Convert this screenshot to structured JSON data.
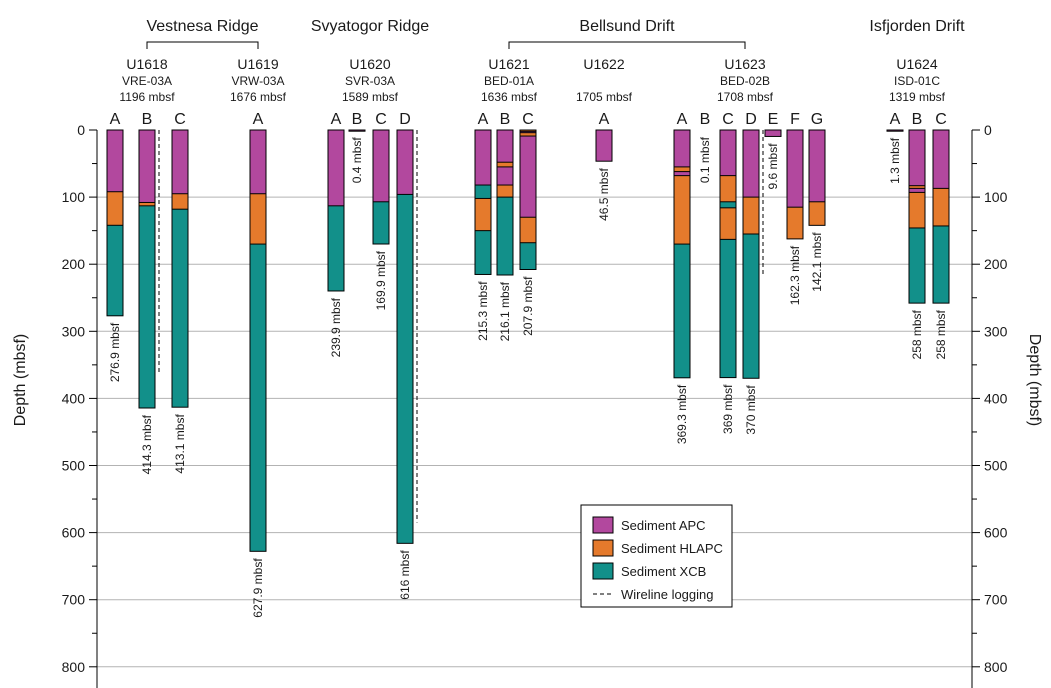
{
  "chart_data": {
    "type": "bar",
    "ylabel": "Depth (mbsf)",
    "ylabel_right": "Depth (mbsf)",
    "ylim": [
      0,
      840
    ],
    "y_ticks": [
      0,
      100,
      200,
      300,
      400,
      500,
      600,
      700,
      800
    ],
    "grid": "horizontal",
    "colors": {
      "APC": "#b2489e",
      "HLAPC": "#e57a2c",
      "XCB": "#12908a",
      "grid": "#b3b3b3"
    },
    "legend": {
      "position": "bottom-right",
      "items": [
        {
          "key": "APC",
          "label": "Sediment APC"
        },
        {
          "key": "HLAPC",
          "label": "Sediment HLAPC"
        },
        {
          "key": "XCB",
          "label": "Sediment XCB"
        },
        {
          "key": "logging",
          "label": "Wireline logging"
        }
      ]
    },
    "regions": [
      {
        "name": "Vestnesa Ridge",
        "sites": [
          "U1618",
          "U1619"
        ],
        "bracket": true
      },
      {
        "name": "Svyatogor Ridge",
        "sites": [
          "U1620"
        ],
        "bracket": false
      },
      {
        "name": "Bellsund Drift",
        "sites": [
          "U1621",
          "U1623"
        ],
        "bracket": true
      },
      {
        "name": "Isfjorden Drift",
        "sites": [
          "U1624"
        ],
        "bracket": false
      }
    ],
    "sites": [
      {
        "name": "U1618",
        "code": "VRE-03A",
        "depth": "1196 mbsf"
      },
      {
        "name": "U1619",
        "code": "VRW-03A",
        "depth": "1676 mbsf"
      },
      {
        "name": "U1620",
        "code": "SVR-03A",
        "depth": "1589 mbsf"
      },
      {
        "name": "U1621",
        "code": "BED-01A",
        "depth": "1636 mbsf"
      },
      {
        "name": "U1622",
        "code": "",
        "depth": "1705 mbsf"
      },
      {
        "name": "U1623",
        "code": "BED-02B",
        "depth": "1708 mbsf"
      },
      {
        "name": "U1624",
        "code": "ISD-01C",
        "depth": "1319 mbsf"
      }
    ],
    "holes": [
      {
        "site": "U1618",
        "hole": "A",
        "total": 276.9,
        "label": "276.9 mbsf",
        "segments": [
          [
            "APC",
            0,
            92
          ],
          [
            "HLAPC",
            92,
            142
          ],
          [
            "XCB",
            142,
            276.9
          ]
        ]
      },
      {
        "site": "U1618",
        "hole": "B",
        "total": 414.3,
        "label": "414.3 mbsf",
        "segments": [
          [
            "APC",
            0,
            108
          ],
          [
            "HLAPC",
            108,
            113
          ],
          [
            "XCB",
            113,
            414.3
          ]
        ],
        "logging": [
          0,
          365
        ]
      },
      {
        "site": "U1618",
        "hole": "C",
        "total": 413.1,
        "label": "413.1 mbsf",
        "segments": [
          [
            "APC",
            0,
            95
          ],
          [
            "HLAPC",
            95,
            118
          ],
          [
            "XCB",
            118,
            413.1
          ]
        ]
      },
      {
        "site": "U1619",
        "hole": "A",
        "total": 627.9,
        "label": "627.9 mbsf",
        "segments": [
          [
            "APC",
            0,
            95
          ],
          [
            "HLAPC",
            95,
            170
          ],
          [
            "XCB",
            170,
            627.9
          ]
        ]
      },
      {
        "site": "U1620",
        "hole": "A",
        "total": 239.9,
        "label": "239.9 mbsf",
        "segments": [
          [
            "APC",
            0,
            113
          ],
          [
            "XCB",
            113,
            239.9
          ]
        ]
      },
      {
        "site": "U1620",
        "hole": "B",
        "total": 0.4,
        "label": "0.4 mbsf",
        "segments": [
          [
            "APC",
            0,
            0.4
          ]
        ]
      },
      {
        "site": "U1620",
        "hole": "C",
        "total": 169.9,
        "label": "169.9 mbsf",
        "segments": [
          [
            "APC",
            0,
            107
          ],
          [
            "XCB",
            107,
            169.9
          ]
        ]
      },
      {
        "site": "U1620",
        "hole": "D",
        "total": 616,
        "label": "616 mbsf",
        "segments": [
          [
            "APC",
            0,
            96
          ],
          [
            "XCB",
            96,
            616
          ]
        ],
        "logging": [
          0,
          585
        ]
      },
      {
        "site": "U1621",
        "hole": "A",
        "total": 215.3,
        "label": "215.3 mbsf",
        "segments": [
          [
            "APC",
            0,
            82
          ],
          [
            "XCB",
            82,
            102
          ],
          [
            "HLAPC",
            102,
            150
          ],
          [
            "XCB",
            150,
            215.3
          ]
        ]
      },
      {
        "site": "U1621",
        "hole": "B",
        "total": 216.1,
        "label": "216.1 mbsf",
        "segments": [
          [
            "APC",
            0,
            48
          ],
          [
            "HLAPC",
            48,
            55
          ],
          [
            "APC",
            55,
            82
          ],
          [
            "HLAPC",
            82,
            100
          ],
          [
            "XCB",
            100,
            216.1
          ]
        ]
      },
      {
        "site": "U1621",
        "hole": "C",
        "total": 207.9,
        "label": "207.9 mbsf",
        "segments": [
          [
            "HLAPC",
            0,
            2
          ],
          [
            "APC",
            2,
            4
          ],
          [
            "HLAPC",
            4,
            9
          ],
          [
            "APC",
            9,
            130
          ],
          [
            "HLAPC",
            130,
            168
          ],
          [
            "XCB",
            168,
            207.9
          ]
        ]
      },
      {
        "site": "U1622",
        "hole": "A",
        "total": 46.5,
        "label": "46.5 mbsf",
        "segments": [
          [
            "APC",
            0,
            46.5
          ]
        ]
      },
      {
        "site": "U1623",
        "hole": "A",
        "total": 369.3,
        "label": "369.3 mbsf",
        "segments": [
          [
            "APC",
            0,
            55
          ],
          [
            "HLAPC",
            55,
            62
          ],
          [
            "APC",
            62,
            68
          ],
          [
            "HLAPC",
            68,
            170
          ],
          [
            "XCB",
            170,
            369.3
          ]
        ]
      },
      {
        "site": "U1623",
        "hole": "B",
        "total": 0.1,
        "label": "0.1 mbsf",
        "segments": []
      },
      {
        "site": "U1623",
        "hole": "C",
        "total": 369,
        "label": "369 mbsf",
        "segments": [
          [
            "APC",
            0,
            68
          ],
          [
            "HLAPC",
            68,
            107
          ],
          [
            "XCB",
            107,
            116
          ],
          [
            "HLAPC",
            116,
            163
          ],
          [
            "XCB",
            163,
            369
          ]
        ]
      },
      {
        "site": "U1623",
        "hole": "D",
        "total": 370,
        "label": "370 mbsf",
        "segments": [
          [
            "APC",
            0,
            100
          ],
          [
            "HLAPC",
            100,
            155
          ],
          [
            "XCB",
            155,
            370
          ]
        ],
        "logging": [
          0,
          218
        ]
      },
      {
        "site": "U1623",
        "hole": "E",
        "total": 9.6,
        "label": "9.6 mbsf",
        "segments": [
          [
            "APC",
            0,
            9.6
          ]
        ]
      },
      {
        "site": "U1623",
        "hole": "F",
        "total": 162.3,
        "label": "162.3 mbsf",
        "segments": [
          [
            "APC",
            0,
            115
          ],
          [
            "HLAPC",
            115,
            162.3
          ]
        ]
      },
      {
        "site": "U1623",
        "hole": "G",
        "total": 142.1,
        "label": "142.1 mbsf",
        "segments": [
          [
            "APC",
            0,
            107
          ],
          [
            "HLAPC",
            107,
            142.1
          ]
        ]
      },
      {
        "site": "U1624",
        "hole": "A",
        "total": 1.3,
        "label": "1.3 mbsf",
        "segments": [
          [
            "APC",
            0,
            1.3
          ]
        ]
      },
      {
        "site": "U1624",
        "hole": "B",
        "total": 258,
        "label": "258 mbsf",
        "segments": [
          [
            "APC",
            0,
            83
          ],
          [
            "HLAPC",
            83,
            87
          ],
          [
            "APC",
            87,
            93
          ],
          [
            "HLAPC",
            93,
            146
          ],
          [
            "XCB",
            146,
            258
          ]
        ]
      },
      {
        "site": "U1624",
        "hole": "C",
        "total": 258,
        "label": "258 mbsf",
        "segments": [
          [
            "APC",
            0,
            87
          ],
          [
            "HLAPC",
            87,
            143
          ],
          [
            "XCB",
            143,
            258
          ]
        ]
      }
    ]
  }
}
